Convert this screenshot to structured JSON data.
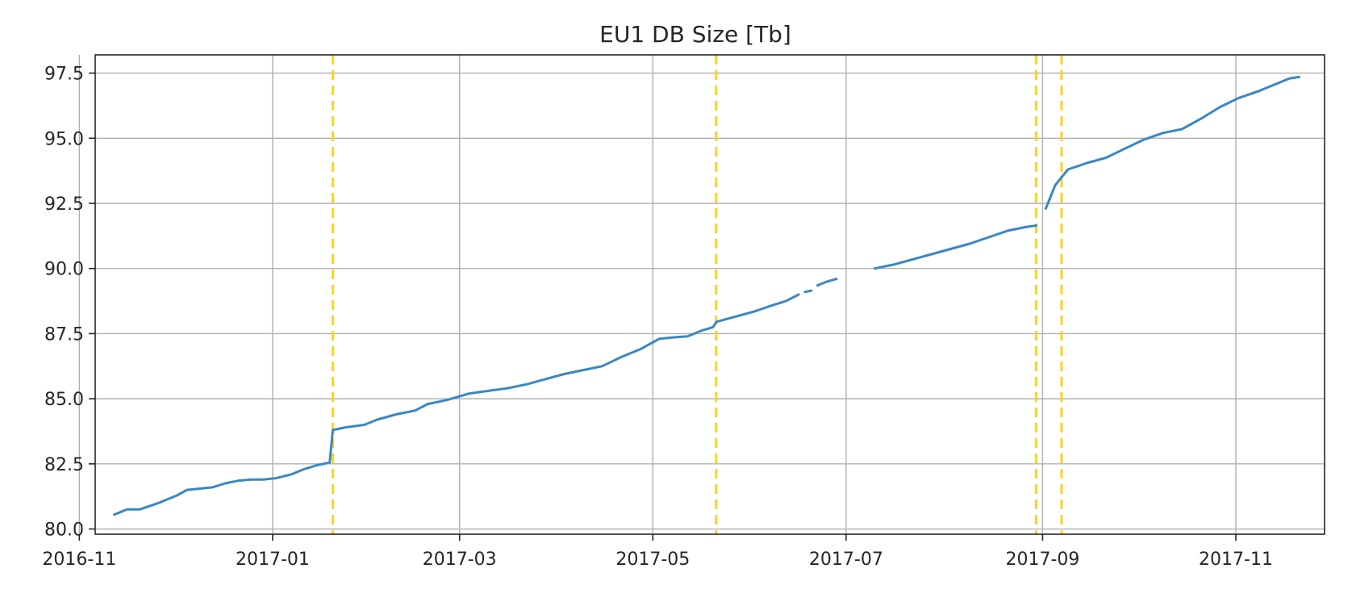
{
  "chart_data": {
    "type": "line",
    "title": "EU1 DB Size [Tb]",
    "xlabel": "",
    "ylabel": "",
    "x_axis_type": "date",
    "xlim": [
      "2016-11-06",
      "2017-11-29"
    ],
    "ylim": [
      79.8,
      98.2
    ],
    "x_ticks": [
      "2016-11",
      "2017-01",
      "2017-03",
      "2017-05",
      "2017-07",
      "2017-09",
      "2017-11"
    ],
    "y_ticks": [
      80.0,
      82.5,
      85.0,
      87.5,
      90.0,
      92.5,
      95.0,
      97.5
    ],
    "y_tick_labels": [
      "80.0",
      "82.5",
      "85.0",
      "87.5",
      "90.0",
      "92.5",
      "95.0",
      "97.5"
    ],
    "grid": true,
    "series_color": "#3a87c4",
    "event_line_color": "#ffd21f",
    "series": [
      {
        "segments": [
          [
            [
              "2016-11-12",
              80.55
            ],
            [
              "2016-11-16",
              80.75
            ],
            [
              "2016-11-20",
              80.75
            ],
            [
              "2016-11-26",
              81.0
            ],
            [
              "2016-12-02",
              81.3
            ],
            [
              "2016-12-05",
              81.5
            ],
            [
              "2016-12-09",
              81.55
            ],
            [
              "2016-12-13",
              81.6
            ],
            [
              "2016-12-17",
              81.75
            ],
            [
              "2016-12-21",
              81.85
            ],
            [
              "2016-12-25",
              81.9
            ],
            [
              "2016-12-29",
              81.9
            ],
            [
              "2017-01-02",
              81.95
            ],
            [
              "2017-01-07",
              82.1
            ],
            [
              "2017-01-11",
              82.3
            ],
            [
              "2017-01-15",
              82.45
            ],
            [
              "2017-01-19",
              82.55
            ],
            [
              "2017-01-20",
              83.8
            ],
            [
              "2017-01-24",
              83.9
            ],
            [
              "2017-01-30",
              84.0
            ],
            [
              "2017-02-03",
              84.2
            ],
            [
              "2017-02-09",
              84.4
            ],
            [
              "2017-02-15",
              84.55
            ],
            [
              "2017-02-19",
              84.8
            ],
            [
              "2017-02-25",
              84.95
            ],
            [
              "2017-03-04",
              85.2
            ],
            [
              "2017-03-10",
              85.3
            ],
            [
              "2017-03-16",
              85.4
            ],
            [
              "2017-03-22",
              85.55
            ],
            [
              "2017-03-28",
              85.75
            ],
            [
              "2017-04-03",
              85.95
            ],
            [
              "2017-04-09",
              86.1
            ],
            [
              "2017-04-15",
              86.25
            ],
            [
              "2017-04-21",
              86.6
            ],
            [
              "2017-04-27",
              86.9
            ],
            [
              "2017-05-03",
              87.3
            ],
            [
              "2017-05-07",
              87.35
            ],
            [
              "2017-05-12",
              87.4
            ],
            [
              "2017-05-16",
              87.6
            ],
            [
              "2017-05-20",
              87.75
            ],
            [
              "2017-05-21",
              87.95
            ],
            [
              "2017-05-27",
              88.15
            ],
            [
              "2017-06-02",
              88.35
            ],
            [
              "2017-06-08",
              88.6
            ],
            [
              "2017-06-12",
              88.75
            ],
            [
              "2017-06-16",
              89.0
            ]
          ],
          [
            [
              "2017-06-18",
              89.1
            ],
            [
              "2017-06-20",
              89.15
            ]
          ],
          [
            [
              "2017-06-22",
              89.35
            ],
            [
              "2017-06-25",
              89.5
            ],
            [
              "2017-06-28",
              89.6
            ]
          ],
          [
            [
              "2017-07-10",
              90.0
            ],
            [
              "2017-07-16",
              90.15
            ],
            [
              "2017-07-22",
              90.35
            ],
            [
              "2017-07-28",
              90.55
            ],
            [
              "2017-08-03",
              90.75
            ],
            [
              "2017-08-09",
              90.95
            ],
            [
              "2017-08-15",
              91.2
            ],
            [
              "2017-08-21",
              91.45
            ],
            [
              "2017-08-27",
              91.6
            ],
            [
              "2017-08-30",
              91.65
            ]
          ],
          [
            [
              "2017-09-02",
              92.3
            ],
            [
              "2017-09-05",
              93.2
            ],
            [
              "2017-09-09",
              93.8
            ],
            [
              "2017-09-15",
              94.05
            ],
            [
              "2017-09-21",
              94.25
            ],
            [
              "2017-09-27",
              94.6
            ],
            [
              "2017-10-03",
              94.95
            ],
            [
              "2017-10-09",
              95.2
            ],
            [
              "2017-10-15",
              95.35
            ],
            [
              "2017-10-21",
              95.75
            ],
            [
              "2017-10-27",
              96.2
            ],
            [
              "2017-11-02",
              96.55
            ],
            [
              "2017-11-08",
              96.8
            ],
            [
              "2017-11-14",
              97.1
            ],
            [
              "2017-11-18",
              97.3
            ],
            [
              "2017-11-21",
              97.35
            ]
          ]
        ]
      }
    ],
    "vertical_markers": [
      "2017-01-20",
      "2017-05-21",
      "2017-08-30",
      "2017-09-07"
    ]
  }
}
